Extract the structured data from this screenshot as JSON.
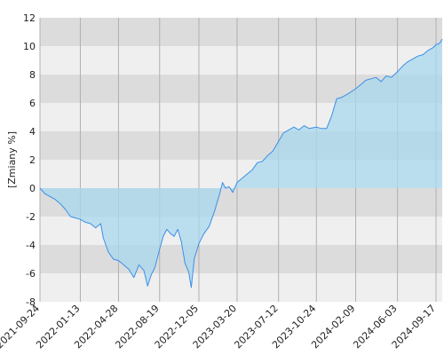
{
  "chart_data": {
    "type": "area",
    "ylabel": "[Zmiany %]",
    "x_ticks": [
      "2021-09-24",
      "2022-01-13",
      "2022-04-28",
      "2022-08-19",
      "2022-12-05",
      "2023-03-20",
      "2023-07-12",
      "2023-10-24",
      "2024-02-09",
      "2024-06-03",
      "2024-09-17"
    ],
    "y_ticks": [
      12,
      10,
      8,
      6,
      4,
      2,
      0,
      -2,
      -4,
      -6,
      -8
    ],
    "ylim": [
      -8,
      12
    ],
    "grid": true,
    "colors": {
      "line": "#3b8fe8",
      "fill": "#a8d8ee",
      "band_dark": "#dcdcdc",
      "band_light": "#efefef",
      "vgrid": "#b0b0b0"
    },
    "series": [
      {
        "points": [
          [
            "2021-09-24",
            0.0
          ],
          [
            "2021-10-08",
            -0.4
          ],
          [
            "2021-10-22",
            -0.6
          ],
          [
            "2021-11-05",
            -0.8
          ],
          [
            "2021-11-19",
            -1.1
          ],
          [
            "2021-12-03",
            -1.5
          ],
          [
            "2021-12-17",
            -2.0
          ],
          [
            "2021-12-31",
            -2.1
          ],
          [
            "2022-01-13",
            -2.2
          ],
          [
            "2022-01-27",
            -2.4
          ],
          [
            "2022-02-10",
            -2.5
          ],
          [
            "2022-02-24",
            -2.8
          ],
          [
            "2022-03-10",
            -2.5
          ],
          [
            "2022-03-17",
            -3.5
          ],
          [
            "2022-03-31",
            -4.5
          ],
          [
            "2022-04-14",
            -5.0
          ],
          [
            "2022-04-28",
            -5.1
          ],
          [
            "2022-05-12",
            -5.4
          ],
          [
            "2022-05-26",
            -5.7
          ],
          [
            "2022-06-09",
            -6.3
          ],
          [
            "2022-06-23",
            -5.4
          ],
          [
            "2022-07-07",
            -5.8
          ],
          [
            "2022-07-17",
            -6.9
          ],
          [
            "2022-07-27",
            -6.1
          ],
          [
            "2022-08-06",
            -5.6
          ],
          [
            "2022-08-19",
            -4.3
          ],
          [
            "2022-08-29",
            -3.4
          ],
          [
            "2022-09-08",
            -2.9
          ],
          [
            "2022-09-18",
            -3.2
          ],
          [
            "2022-09-28",
            -3.4
          ],
          [
            "2022-10-08",
            -2.9
          ],
          [
            "2022-10-18",
            -3.8
          ],
          [
            "2022-10-28",
            -5.3
          ],
          [
            "2022-11-07",
            -5.9
          ],
          [
            "2022-11-14",
            -7.0
          ],
          [
            "2022-11-22",
            -5.0
          ],
          [
            "2022-12-05",
            -3.9
          ],
          [
            "2022-12-19",
            -3.2
          ],
          [
            "2023-01-02",
            -2.7
          ],
          [
            "2023-01-16",
            -1.7
          ],
          [
            "2023-01-30",
            -0.5
          ],
          [
            "2023-02-08",
            0.4
          ],
          [
            "2023-02-16",
            0.0
          ],
          [
            "2023-02-26",
            0.1
          ],
          [
            "2023-03-08",
            -0.3
          ],
          [
            "2023-03-20",
            0.4
          ],
          [
            "2023-04-03",
            0.7
          ],
          [
            "2023-04-17",
            1.0
          ],
          [
            "2023-05-01",
            1.3
          ],
          [
            "2023-05-15",
            1.8
          ],
          [
            "2023-05-29",
            1.9
          ],
          [
            "2023-06-12",
            2.3
          ],
          [
            "2023-06-26",
            2.6
          ],
          [
            "2023-07-12",
            3.3
          ],
          [
            "2023-07-26",
            3.9
          ],
          [
            "2023-08-09",
            4.1
          ],
          [
            "2023-08-23",
            4.3
          ],
          [
            "2023-09-06",
            4.1
          ],
          [
            "2023-09-20",
            4.4
          ],
          [
            "2023-10-04",
            4.2
          ],
          [
            "2023-10-24",
            4.3
          ],
          [
            "2023-11-07",
            4.2
          ],
          [
            "2023-11-21",
            4.2
          ],
          [
            "2023-12-05",
            5.1
          ],
          [
            "2023-12-19",
            6.3
          ],
          [
            "2024-01-02",
            6.4
          ],
          [
            "2024-01-16",
            6.6
          ],
          [
            "2024-02-09",
            7.0
          ],
          [
            "2024-02-23",
            7.3
          ],
          [
            "2024-03-08",
            7.6
          ],
          [
            "2024-03-22",
            7.7
          ],
          [
            "2024-04-05",
            7.8
          ],
          [
            "2024-04-19",
            7.5
          ],
          [
            "2024-05-03",
            7.9
          ],
          [
            "2024-05-17",
            7.8
          ],
          [
            "2024-06-03",
            8.2
          ],
          [
            "2024-06-17",
            8.6
          ],
          [
            "2024-07-01",
            8.9
          ],
          [
            "2024-07-15",
            9.1
          ],
          [
            "2024-07-29",
            9.3
          ],
          [
            "2024-08-12",
            9.4
          ],
          [
            "2024-08-26",
            9.7
          ],
          [
            "2024-09-09",
            9.9
          ],
          [
            "2024-09-17",
            10.1
          ],
          [
            "2024-09-27",
            10.2
          ],
          [
            "2024-10-04",
            10.5
          ]
        ]
      }
    ]
  }
}
